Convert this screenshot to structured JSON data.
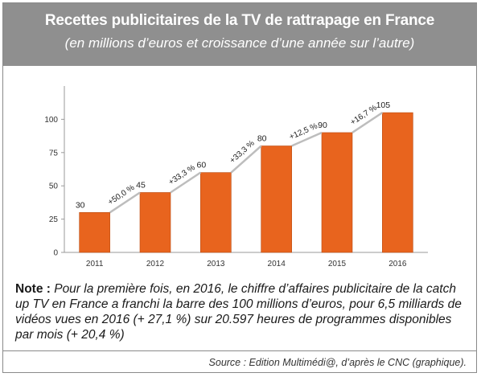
{
  "header": {
    "title": "Recettes publicitaires de la TV de rattrapage en France",
    "subtitle": "(en millions d’euros et croissance d’une année sur l’autre)"
  },
  "note": {
    "label": "Note :",
    "text": " Pour la première fois, en 2016, le chiffre d’affaires publicitaire de la catch up TV en France a franchi la barre des 100 millions d’euros, pour 6,5 milliards de vidéos vues en 2016 (+ 27,1 %) sur 20.597 heures de programmes disponibles par mois (+ 20,4 %)"
  },
  "source": "Source : Edition Multimédi@, d’après le CNC (graphique).",
  "colors": {
    "bar": "#e8641e",
    "bar_border": "#b84a10",
    "header_bg": "#8f8f8f",
    "trend_line": "#bdbdbd"
  },
  "chart_data": {
    "type": "bar",
    "categories": [
      "2011",
      "2012",
      "2013",
      "2014",
      "2015",
      "2016"
    ],
    "values": [
      30,
      45,
      60,
      80,
      90,
      105
    ],
    "growth_labels": [
      "+50,0 %",
      "+33,3 %",
      "+33,3 %",
      "+12,5 %",
      "+16,7 %"
    ],
    "ylim": [
      0,
      125
    ],
    "yticks": [
      0,
      25,
      50,
      75,
      100
    ],
    "grid": false,
    "title": "",
    "xlabel": "",
    "ylabel": ""
  }
}
